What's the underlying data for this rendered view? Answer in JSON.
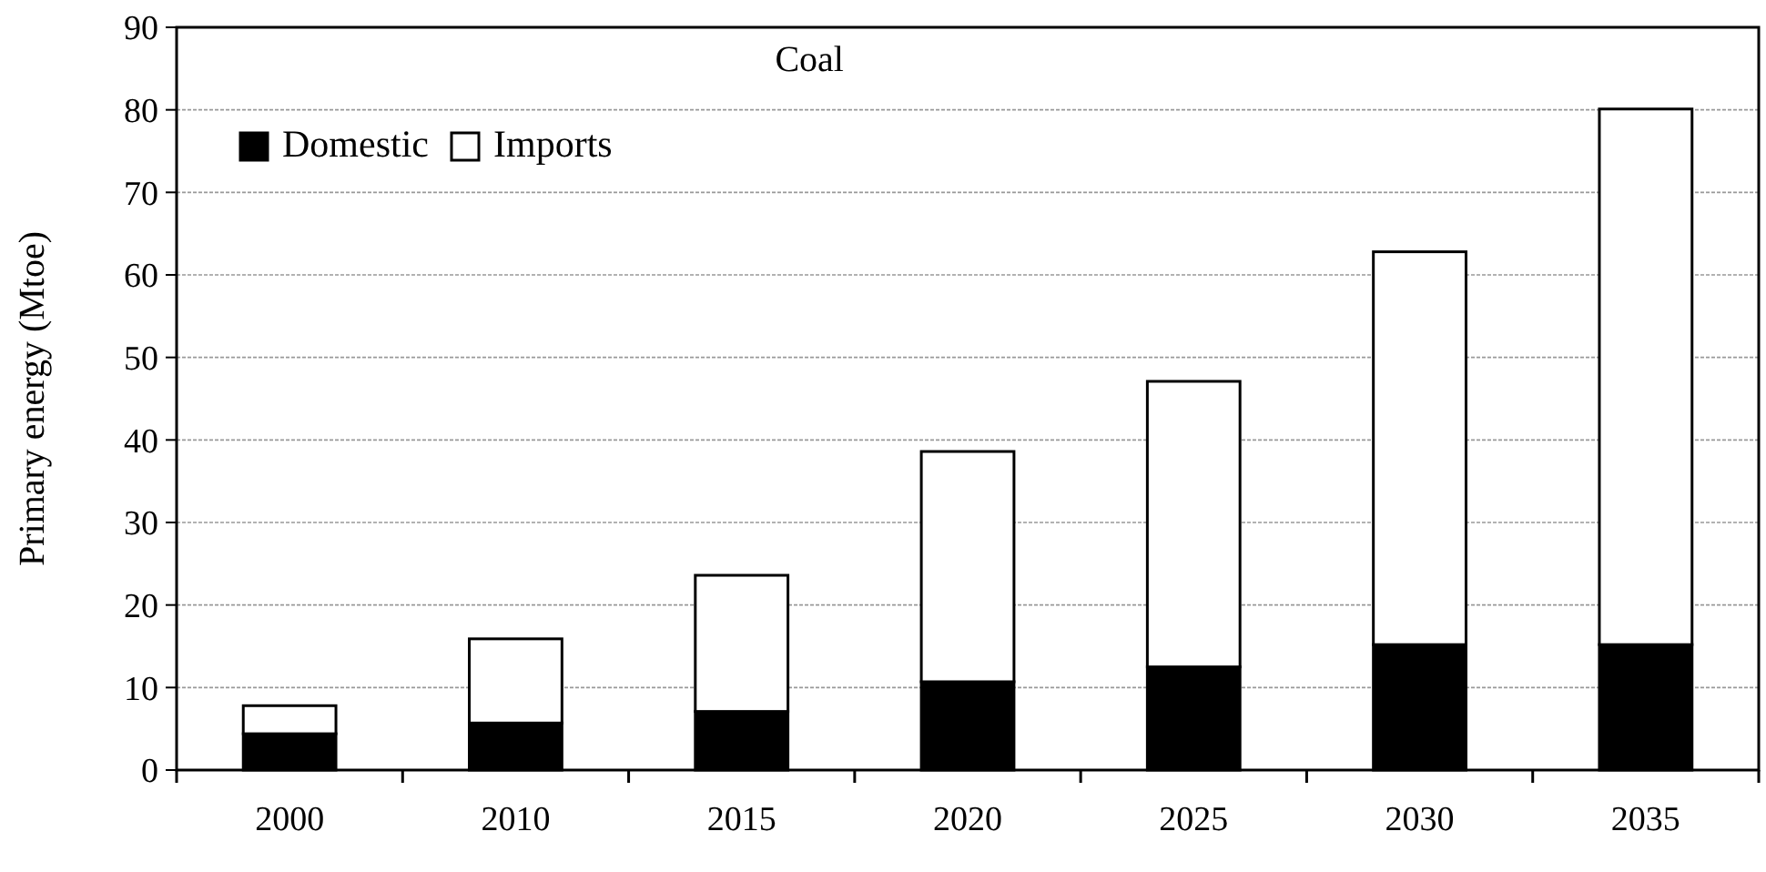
{
  "chart_data": {
    "type": "bar",
    "title": "Coal",
    "ylabel": "Primary energy (Mtoe)",
    "categories": [
      "2000",
      "2010",
      "2015",
      "2020",
      "2025",
      "2030",
      "2035"
    ],
    "stacked": true,
    "series": [
      {
        "name": "Domestic",
        "color": "#000000",
        "values": [
          4.4,
          5.7,
          7.1,
          10.7,
          12.5,
          15.2,
          15.2
        ]
      },
      {
        "name": "Imports",
        "color": "#ffffff",
        "values": [
          3.4,
          10.2,
          16.5,
          27.9,
          34.6,
          47.6,
          64.9
        ]
      }
    ],
    "ylim": [
      0,
      90
    ],
    "yticks": [
      0,
      10,
      20,
      30,
      40,
      50,
      60,
      70,
      80,
      90
    ],
    "grid": "y",
    "legend": "top left"
  }
}
